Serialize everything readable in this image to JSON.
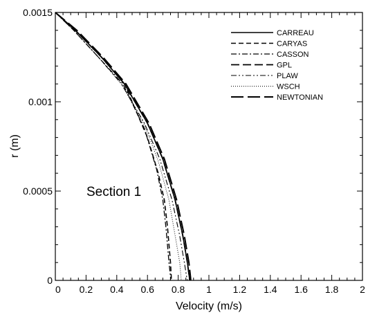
{
  "chart_data": {
    "type": "line",
    "title": "",
    "xlabel": "Velocity (m/s)",
    "ylabel": "r (m)",
    "xlim": [
      0,
      2
    ],
    "ylim": [
      0,
      0.0015
    ],
    "x_ticks": [
      "0",
      "0.2",
      "0.4",
      "0.6",
      "0.8",
      "1",
      "1.2",
      "1.4",
      "1.6",
      "1.8",
      "2"
    ],
    "y_ticks": [
      "0",
      "0.0005",
      "0.001",
      "0.0015"
    ],
    "grid": false,
    "legend_position": "top-right",
    "annotation": "Section 1",
    "series": [
      {
        "name": "CARREAU",
        "dash": "solid",
        "x": [
          0,
          0.13,
          0.3,
          0.45,
          0.6,
          0.7,
          0.78,
          0.83,
          0.86,
          0.872,
          0.875
        ],
        "y": [
          0.0015,
          0.0014,
          0.00125,
          0.0011,
          0.00088,
          0.00068,
          0.00045,
          0.00025,
          0.0001,
          2e-05,
          0
        ]
      },
      {
        "name": "CARYAS",
        "dash": "dash",
        "x": [
          0,
          0.13,
          0.3,
          0.45,
          0.6,
          0.67,
          0.71,
          0.73,
          0.75,
          0.755,
          0.755
        ],
        "y": [
          0.0015,
          0.0014,
          0.00125,
          0.0011,
          0.0008,
          0.0006,
          0.00045,
          0.0003,
          0.0001,
          2e-05,
          0
        ]
      },
      {
        "name": "CASSON",
        "dash": "dashdot",
        "x": [
          0,
          0.12,
          0.28,
          0.44,
          0.58,
          0.66,
          0.7,
          0.72,
          0.74,
          0.75,
          0.75
        ],
        "y": [
          0.0015,
          0.0014,
          0.00125,
          0.0011,
          0.00085,
          0.00062,
          0.00045,
          0.0003,
          0.0001,
          2e-05,
          0
        ]
      },
      {
        "name": "GPL",
        "dash": "longdash",
        "x": [
          0,
          0.13,
          0.3,
          0.45,
          0.6,
          0.7,
          0.78,
          0.83,
          0.86,
          0.872,
          0.875
        ],
        "y": [
          0.0015,
          0.0014,
          0.00125,
          0.0011,
          0.00088,
          0.00068,
          0.00045,
          0.00025,
          0.0001,
          2e-05,
          0
        ]
      },
      {
        "name": "PLAW",
        "dash": "dashdotdot",
        "x": [
          0,
          0.12,
          0.28,
          0.43,
          0.58,
          0.68,
          0.76,
          0.81,
          0.84,
          0.855,
          0.86
        ],
        "y": [
          0.0015,
          0.0014,
          0.00125,
          0.0011,
          0.00088,
          0.00068,
          0.00045,
          0.00025,
          0.0001,
          2e-05,
          0
        ]
      },
      {
        "name": "WSCH",
        "dash": "dot",
        "x": [
          0,
          0.12,
          0.28,
          0.43,
          0.58,
          0.67,
          0.74,
          0.78,
          0.81,
          0.818,
          0.82
        ],
        "y": [
          0.0015,
          0.0014,
          0.00125,
          0.0011,
          0.00087,
          0.00067,
          0.00045,
          0.00025,
          0.0001,
          2e-05,
          0
        ]
      },
      {
        "name": "NEWTONIAN",
        "dash": "xlongdash",
        "x": [
          0,
          0.14,
          0.31,
          0.46,
          0.61,
          0.71,
          0.79,
          0.84,
          0.87,
          0.88,
          0.882
        ],
        "y": [
          0.0015,
          0.0014,
          0.00125,
          0.0011,
          0.00088,
          0.00068,
          0.00045,
          0.00025,
          0.0001,
          2e-05,
          0
        ]
      }
    ]
  }
}
